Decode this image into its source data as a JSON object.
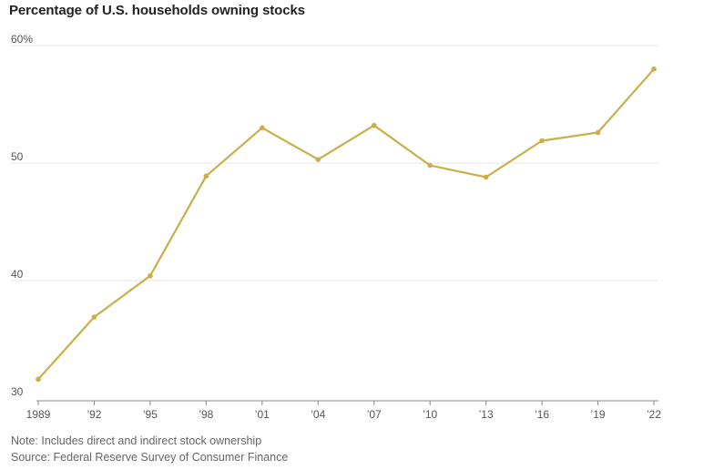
{
  "chart_data": {
    "type": "line",
    "title": "Percentage of U.S. households owning stocks",
    "xlabel": "",
    "ylabel": "",
    "categories": [
      "1989",
      "’92",
      "’95",
      "’98",
      "’01",
      "’04",
      "’07",
      "’10",
      "’13",
      "’16",
      "’19",
      "’22"
    ],
    "series": [
      {
        "values": [
          31.6,
          36.9,
          40.4,
          48.9,
          53.0,
          50.3,
          53.2,
          49.8,
          48.8,
          51.9,
          52.6,
          58.0
        ],
        "color": "#c9ae4a"
      }
    ],
    "y_ticks": [
      {
        "value": 30,
        "label": "30"
      },
      {
        "value": 40,
        "label": "40"
      },
      {
        "value": 50,
        "label": "50"
      },
      {
        "value": 60,
        "label": "60%"
      }
    ],
    "ylim": [
      30,
      60
    ],
    "grid": "horizontal",
    "gridline_color": "#e4e4e4",
    "axis_color": "#888888"
  },
  "notes": {
    "note": "Note: Includes direct and indirect stock ownership",
    "source": "Source: Federal Reserve Survey of Consumer Finance"
  }
}
